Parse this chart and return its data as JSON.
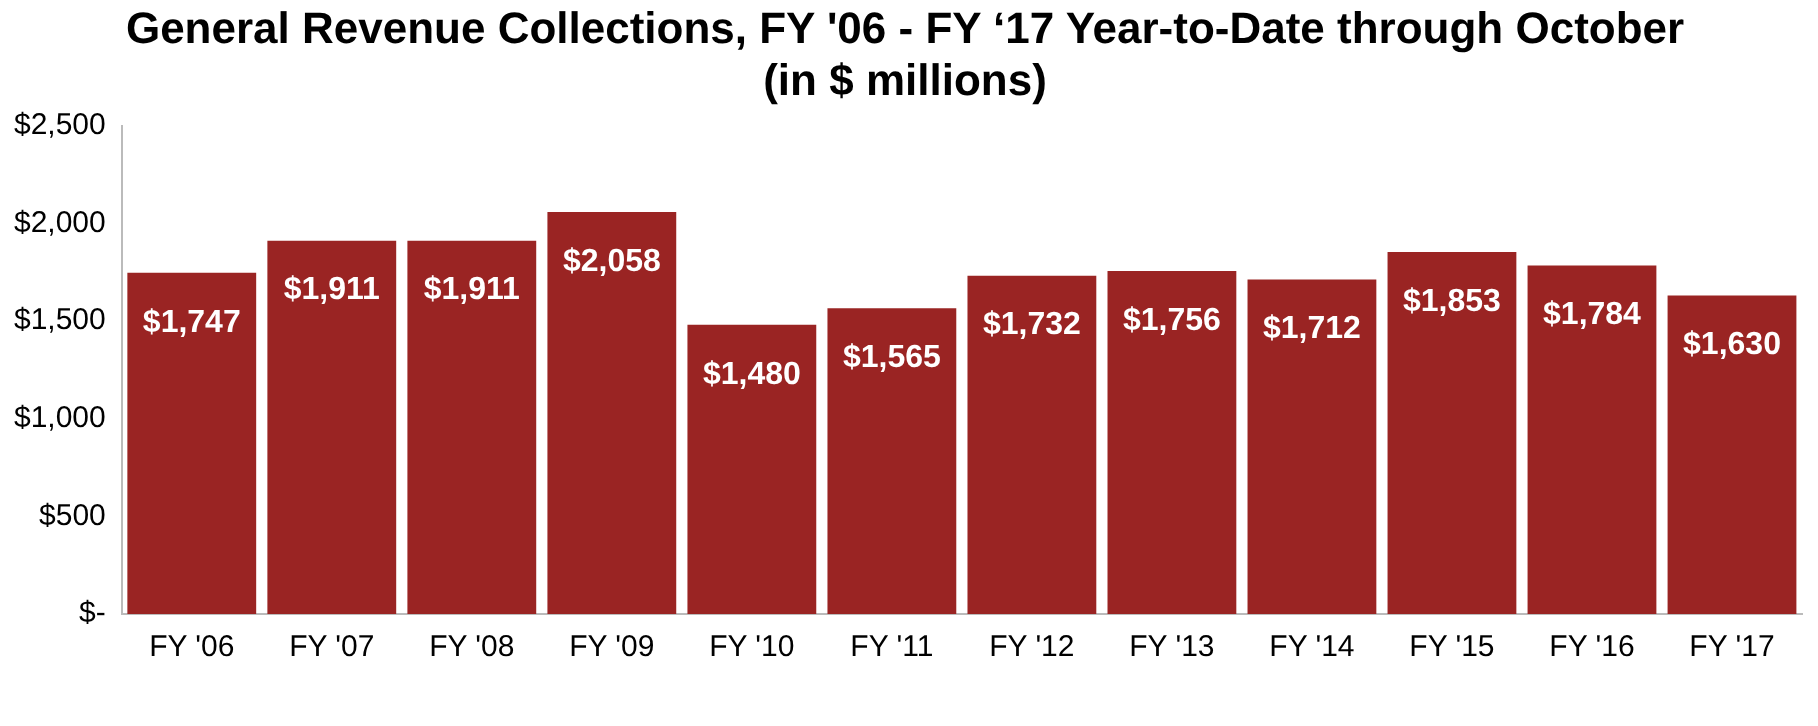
{
  "chart_data": {
    "type": "bar",
    "title": "General Revenue Collections, FY '06 - FY ‘17 Year-to-Date through October",
    "subtitle": "(in $ millions)",
    "categories": [
      "FY '06",
      "FY '07",
      "FY '08",
      "FY '09",
      "FY '10",
      "FY '11",
      "FY '12",
      "FY '13",
      "FY '14",
      "FY '15",
      "FY '16",
      "FY '17"
    ],
    "values": [
      1747,
      1911,
      1911,
      2058,
      1480,
      1565,
      1732,
      1756,
      1712,
      1853,
      1784,
      1630
    ],
    "value_labels": [
      "$1,747",
      "$1,911",
      "$1,911",
      "$2,058",
      "$1,480",
      "$1,565",
      "$1,732",
      "$1,756",
      "$1,712",
      "$1,853",
      "$1,784",
      "$1,630"
    ],
    "color": "#9a2423",
    "ylim": [
      0,
      2500
    ],
    "yticks": [
      {
        "value": 0,
        "label": "$-"
      },
      {
        "value": 500,
        "label": "$500"
      },
      {
        "value": 1000,
        "label": "$1,000"
      },
      {
        "value": 1500,
        "label": "$1,500"
      },
      {
        "value": 2000,
        "label": "$2,000"
      },
      {
        "value": 2500,
        "label": "$2,500"
      }
    ],
    "grid": false,
    "legend": false
  }
}
